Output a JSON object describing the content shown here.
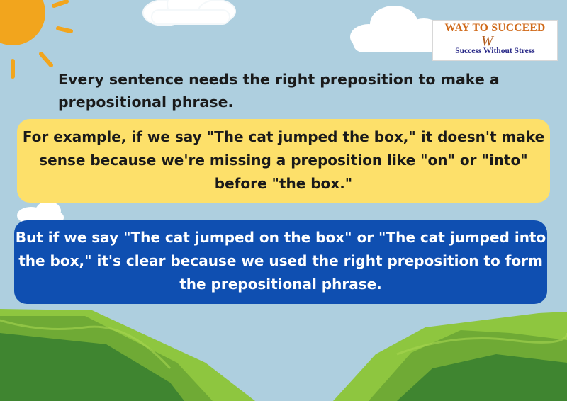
{
  "logo": {
    "name": "WAY TO SUCCEED",
    "mark": "W",
    "tagline": "Success Without Stress"
  },
  "intro": {
    "text": "Every sentence needs the right preposition to make a prepositional phrase."
  },
  "example_box": {
    "text": "For example, if we say \"The cat jumped the box,\" it doesn't make sense because we're missing a preposition like \"on\" or \"into\" before \"the box.\""
  },
  "correct_box": {
    "text": "But if we say \"The cat jumped on the box\" or \"The cat jumped into the box,\" it's clear because we used the right preposition to form the prepositional phrase."
  },
  "colors": {
    "sky": "#aecfdf",
    "yellow_box": "#fde06a",
    "blue_box": "#0f4fb1",
    "sun": "#f2a51d",
    "hill_dark": "#3f8530",
    "hill_light": "#8ec63f"
  }
}
